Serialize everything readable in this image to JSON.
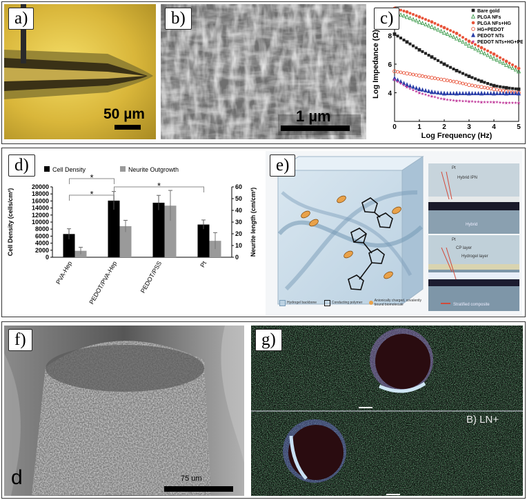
{
  "panels": {
    "a": {
      "tag": "a)",
      "scale_label": "50 µm"
    },
    "b": {
      "tag": "b)",
      "scale_label": "1 µm"
    },
    "c": {
      "tag": "c)"
    },
    "d": {
      "tag": "d)"
    },
    "e": {
      "tag": "e)",
      "legend": [
        "Hydrogel backbone",
        "Conducting polymer",
        "Anionically charged, covalently bound biomolecule"
      ],
      "top_labels": [
        "Pt",
        "Hybrid IPN",
        "Hybrid"
      ],
      "bottom_labels": [
        "Pt",
        "CP layer",
        "Hydrogel layer",
        "Stratified composite"
      ]
    },
    "f": {
      "tag": "f)",
      "corner_letter": "d",
      "scale_label": "75 um"
    },
    "g": {
      "tag": "g)",
      "label": "B) LN+"
    }
  },
  "colors": {
    "frame": "#333333",
    "gold": "#e2c24a",
    "fluor_green": "#2f6a3c"
  },
  "chart_data": [
    {
      "id": "c",
      "type": "scatter",
      "xlabel": "Log Frequency (Hz)",
      "ylabel": "Log Impedance (Ω)",
      "xlim": [
        0,
        5
      ],
      "ylim": [
        2,
        10
      ],
      "xticks": [
        0,
        1,
        2,
        3,
        4,
        5
      ],
      "yticks": [
        4,
        6,
        8
      ],
      "legend_position": "top-right",
      "series": [
        {
          "name": "Bare gold",
          "marker": "square-filled",
          "color": "#222222",
          "x": [
            0,
            0.5,
            1,
            1.5,
            2,
            2.5,
            3,
            3.5,
            4,
            4.5,
            5
          ],
          "y": [
            8.1,
            7.55,
            7.0,
            6.5,
            6.0,
            5.55,
            5.15,
            4.8,
            4.5,
            4.35,
            4.25
          ]
        },
        {
          "name": "PLGA NFs",
          "marker": "triangle-open",
          "color": "#3a9a4a",
          "x": [
            0,
            0.5,
            1,
            1.5,
            2,
            2.5,
            3,
            3.5,
            4,
            4.5,
            5
          ],
          "y": [
            9.6,
            9.3,
            8.95,
            8.6,
            8.2,
            7.8,
            7.3,
            6.85,
            6.4,
            5.95,
            5.5
          ]
        },
        {
          "name": "PLGA NFs+HG",
          "marker": "circle-filled",
          "color": "#e8543a",
          "x": [
            0,
            0.5,
            1,
            1.5,
            2,
            2.5,
            3,
            3.5,
            4,
            4.5,
            5
          ],
          "y": [
            9.9,
            9.65,
            9.3,
            8.95,
            8.55,
            8.15,
            7.6,
            7.15,
            6.7,
            6.2,
            5.7
          ]
        },
        {
          "name": "HG+PEDOT",
          "marker": "circle-open",
          "color": "#e8543a",
          "x": [
            0,
            0.5,
            1,
            1.5,
            2,
            2.5,
            3,
            3.5,
            4,
            4.5,
            5
          ],
          "y": [
            5.5,
            5.35,
            5.2,
            5.05,
            4.9,
            4.75,
            4.55,
            4.4,
            4.25,
            4.1,
            4.0
          ]
        },
        {
          "name": "PEDOT NTs",
          "marker": "triangle-filled",
          "color": "#2b3fa8",
          "x": [
            0,
            0.5,
            1,
            1.5,
            2,
            2.5,
            3,
            3.5,
            4,
            4.5,
            5
          ],
          "y": [
            5.0,
            4.55,
            4.25,
            4.05,
            3.95,
            3.95,
            3.95,
            3.95,
            3.95,
            3.95,
            3.95
          ]
        },
        {
          "name": "PEDOT NTs+HG+PEDOT",
          "marker": "star",
          "color": "#c0389a",
          "x": [
            0,
            0.5,
            1,
            1.5,
            2,
            2.5,
            3,
            3.5,
            4,
            4.5,
            5
          ],
          "y": [
            4.9,
            4.4,
            4.0,
            3.75,
            3.55,
            3.45,
            3.4,
            3.35,
            3.35,
            3.3,
            3.3
          ]
        }
      ]
    },
    {
      "id": "d",
      "type": "bar",
      "categories": [
        "PVA-Hep",
        "PEDOT/PVA-Hep",
        "PEDOT/PSS",
        "Pt"
      ],
      "ylabel": "Cell Density (cells/cm²)",
      "y2label": "Neurite length (cm/cm²)",
      "ylim": [
        0,
        20000
      ],
      "y2lim": [
        0,
        60
      ],
      "yticks": [
        0,
        2000,
        4000,
        6000,
        8000,
        10000,
        12000,
        14000,
        16000,
        18000,
        20000
      ],
      "y2ticks": [
        0,
        10,
        20,
        30,
        40,
        50,
        60
      ],
      "legend_position": "top",
      "significance_marker": "*",
      "series": [
        {
          "name": "Cell Density",
          "axis": "left",
          "color": "#000000",
          "values": [
            6600,
            16100,
            15500,
            9300
          ],
          "errors": [
            1500,
            2600,
            2100,
            1300
          ]
        },
        {
          "name": "Neurite Outgrowth",
          "axis": "right",
          "color": "#9a9a9a",
          "values": [
            5.5,
            26.5,
            44,
            14
          ],
          "errors": [
            3,
            5,
            13,
            7
          ]
        }
      ]
    }
  ]
}
